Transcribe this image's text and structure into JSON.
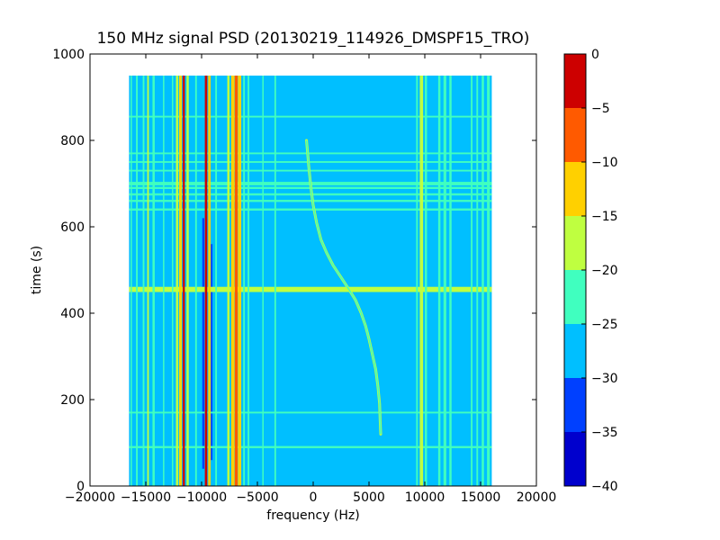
{
  "chart_data": {
    "type": "heatmap",
    "title": "150 MHz signal PSD (20130219_114926_DMSPF15_TRO)",
    "xlabel": "frequency (Hz)",
    "ylabel": "time (s)",
    "xlim": [
      -20000,
      20000
    ],
    "ylim": [
      0,
      1000
    ],
    "x_ticks": [
      -20000,
      -15000,
      -10000,
      -5000,
      0,
      5000,
      10000,
      15000,
      20000
    ],
    "y_ticks": [
      0,
      200,
      400,
      600,
      800,
      1000
    ],
    "x_tick_labels": [
      "−20000",
      "−15000",
      "−10000",
      "−5000",
      "0",
      "5000",
      "10000",
      "15000",
      "20000"
    ],
    "y_tick_labels": [
      "0",
      "200",
      "400",
      "600",
      "800",
      "1000"
    ],
    "data_extent": {
      "x": [
        -16500,
        16000
      ],
      "y": [
        0,
        950
      ]
    },
    "background_level": -27.5,
    "colorbar": {
      "levels": [
        -40,
        -35,
        -30,
        -25,
        -20,
        -15,
        -10,
        -5,
        0
      ],
      "tick_labels": [
        "−40",
        "−35",
        "−30",
        "−25",
        "−20",
        "−15",
        "−10",
        "−5",
        "0"
      ],
      "colors": [
        "#0000cd",
        "#0040ff",
        "#00bfff",
        "#40ffbf",
        "#bfff40",
        "#ffd000",
        "#ff5a00",
        "#cd0000"
      ]
    },
    "vertical_lines": [
      {
        "x": -16300,
        "width": 120,
        "level": -22.5
      },
      {
        "x": -15800,
        "width": 150,
        "level": -22.5
      },
      {
        "x": -15200,
        "width": 150,
        "level": -22.5
      },
      {
        "x": -14800,
        "width": 150,
        "level": -17.5
      },
      {
        "x": -14300,
        "width": 200,
        "level": -22.5
      },
      {
        "x": -13400,
        "width": 120,
        "level": -22.5
      },
      {
        "x": -12600,
        "width": 120,
        "level": -22.5
      },
      {
        "x": -12200,
        "width": 200,
        "level": -17.5
      },
      {
        "x": -11900,
        "width": 250,
        "level": -12.5
      },
      {
        "x": -11600,
        "width": 200,
        "level": -2.5
      },
      {
        "x": -11250,
        "width": 200,
        "level": -17.5
      },
      {
        "x": -10500,
        "width": 150,
        "level": -22.5
      },
      {
        "x": -9600,
        "width": 220,
        "level": -2.5
      },
      {
        "x": -9300,
        "width": 220,
        "level": -12.5
      },
      {
        "x": -8700,
        "width": 150,
        "level": -22.5
      },
      {
        "x": -7600,
        "width": 200,
        "level": -17.5
      },
      {
        "x": -7200,
        "width": 300,
        "level": -12.5
      },
      {
        "x": -6900,
        "width": 250,
        "level": -7.5
      },
      {
        "x": -6600,
        "width": 300,
        "level": -12.5
      },
      {
        "x": -6200,
        "width": 150,
        "level": -22.5
      },
      {
        "x": -5800,
        "width": 150,
        "level": -22.5
      },
      {
        "x": -4500,
        "width": 120,
        "level": -22.5
      },
      {
        "x": -3400,
        "width": 150,
        "level": -22.5
      },
      {
        "x": 9300,
        "width": 150,
        "level": -22.5
      },
      {
        "x": 9700,
        "width": 300,
        "level": -17.5
      },
      {
        "x": 10100,
        "width": 200,
        "level": -22.5
      },
      {
        "x": 11300,
        "width": 200,
        "level": -22.5
      },
      {
        "x": 11800,
        "width": 250,
        "level": -22.5
      },
      {
        "x": 12300,
        "width": 200,
        "level": -22.5
      },
      {
        "x": 14200,
        "width": 150,
        "level": -22.5
      },
      {
        "x": 14700,
        "width": 150,
        "level": -22.5
      },
      {
        "x": 15200,
        "width": 200,
        "level": -22.5
      },
      {
        "x": 15700,
        "width": 250,
        "level": -22.5
      }
    ],
    "horizontal_lines": [
      {
        "y": 90,
        "height": 5,
        "level": -22.5
      },
      {
        "y": 170,
        "height": 4,
        "level": -22.5
      },
      {
        "y": 455,
        "height": 12,
        "level": -17.5
      },
      {
        "y": 640,
        "height": 5,
        "level": -22.5
      },
      {
        "y": 660,
        "height": 5,
        "level": -22.5
      },
      {
        "y": 675,
        "height": 5,
        "level": -22.5
      },
      {
        "y": 690,
        "height": 5,
        "level": -22.5
      },
      {
        "y": 700,
        "height": 8,
        "level": -22.5
      },
      {
        "y": 730,
        "height": 4,
        "level": -22.5
      },
      {
        "y": 750,
        "height": 4,
        "level": -22.5
      },
      {
        "y": 770,
        "height": 4,
        "level": -22.5
      },
      {
        "y": 855,
        "height": 4,
        "level": -22.5
      }
    ],
    "deep_patches": [
      {
        "x": -9850,
        "y0": 40,
        "y1": 620,
        "width": 180,
        "level": -32.5
      },
      {
        "x": -9100,
        "y0": 60,
        "y1": 560,
        "width": 150,
        "level": -32.5
      }
    ],
    "doppler_track": {
      "level": -22.5,
      "points": [
        [
          -600,
          800
        ],
        [
          -400,
          740
        ],
        [
          -200,
          690
        ],
        [
          0,
          650
        ],
        [
          300,
          610
        ],
        [
          700,
          570
        ],
        [
          1200,
          540
        ],
        [
          1800,
          510
        ],
        [
          2500,
          483
        ],
        [
          3200,
          455
        ],
        [
          3800,
          430
        ],
        [
          4300,
          400
        ],
        [
          4700,
          370
        ],
        [
          5000,
          340
        ],
        [
          5300,
          305
        ],
        [
          5600,
          270
        ],
        [
          5800,
          230
        ],
        [
          5950,
          190
        ],
        [
          6000,
          150
        ],
        [
          6050,
          120
        ]
      ]
    }
  }
}
